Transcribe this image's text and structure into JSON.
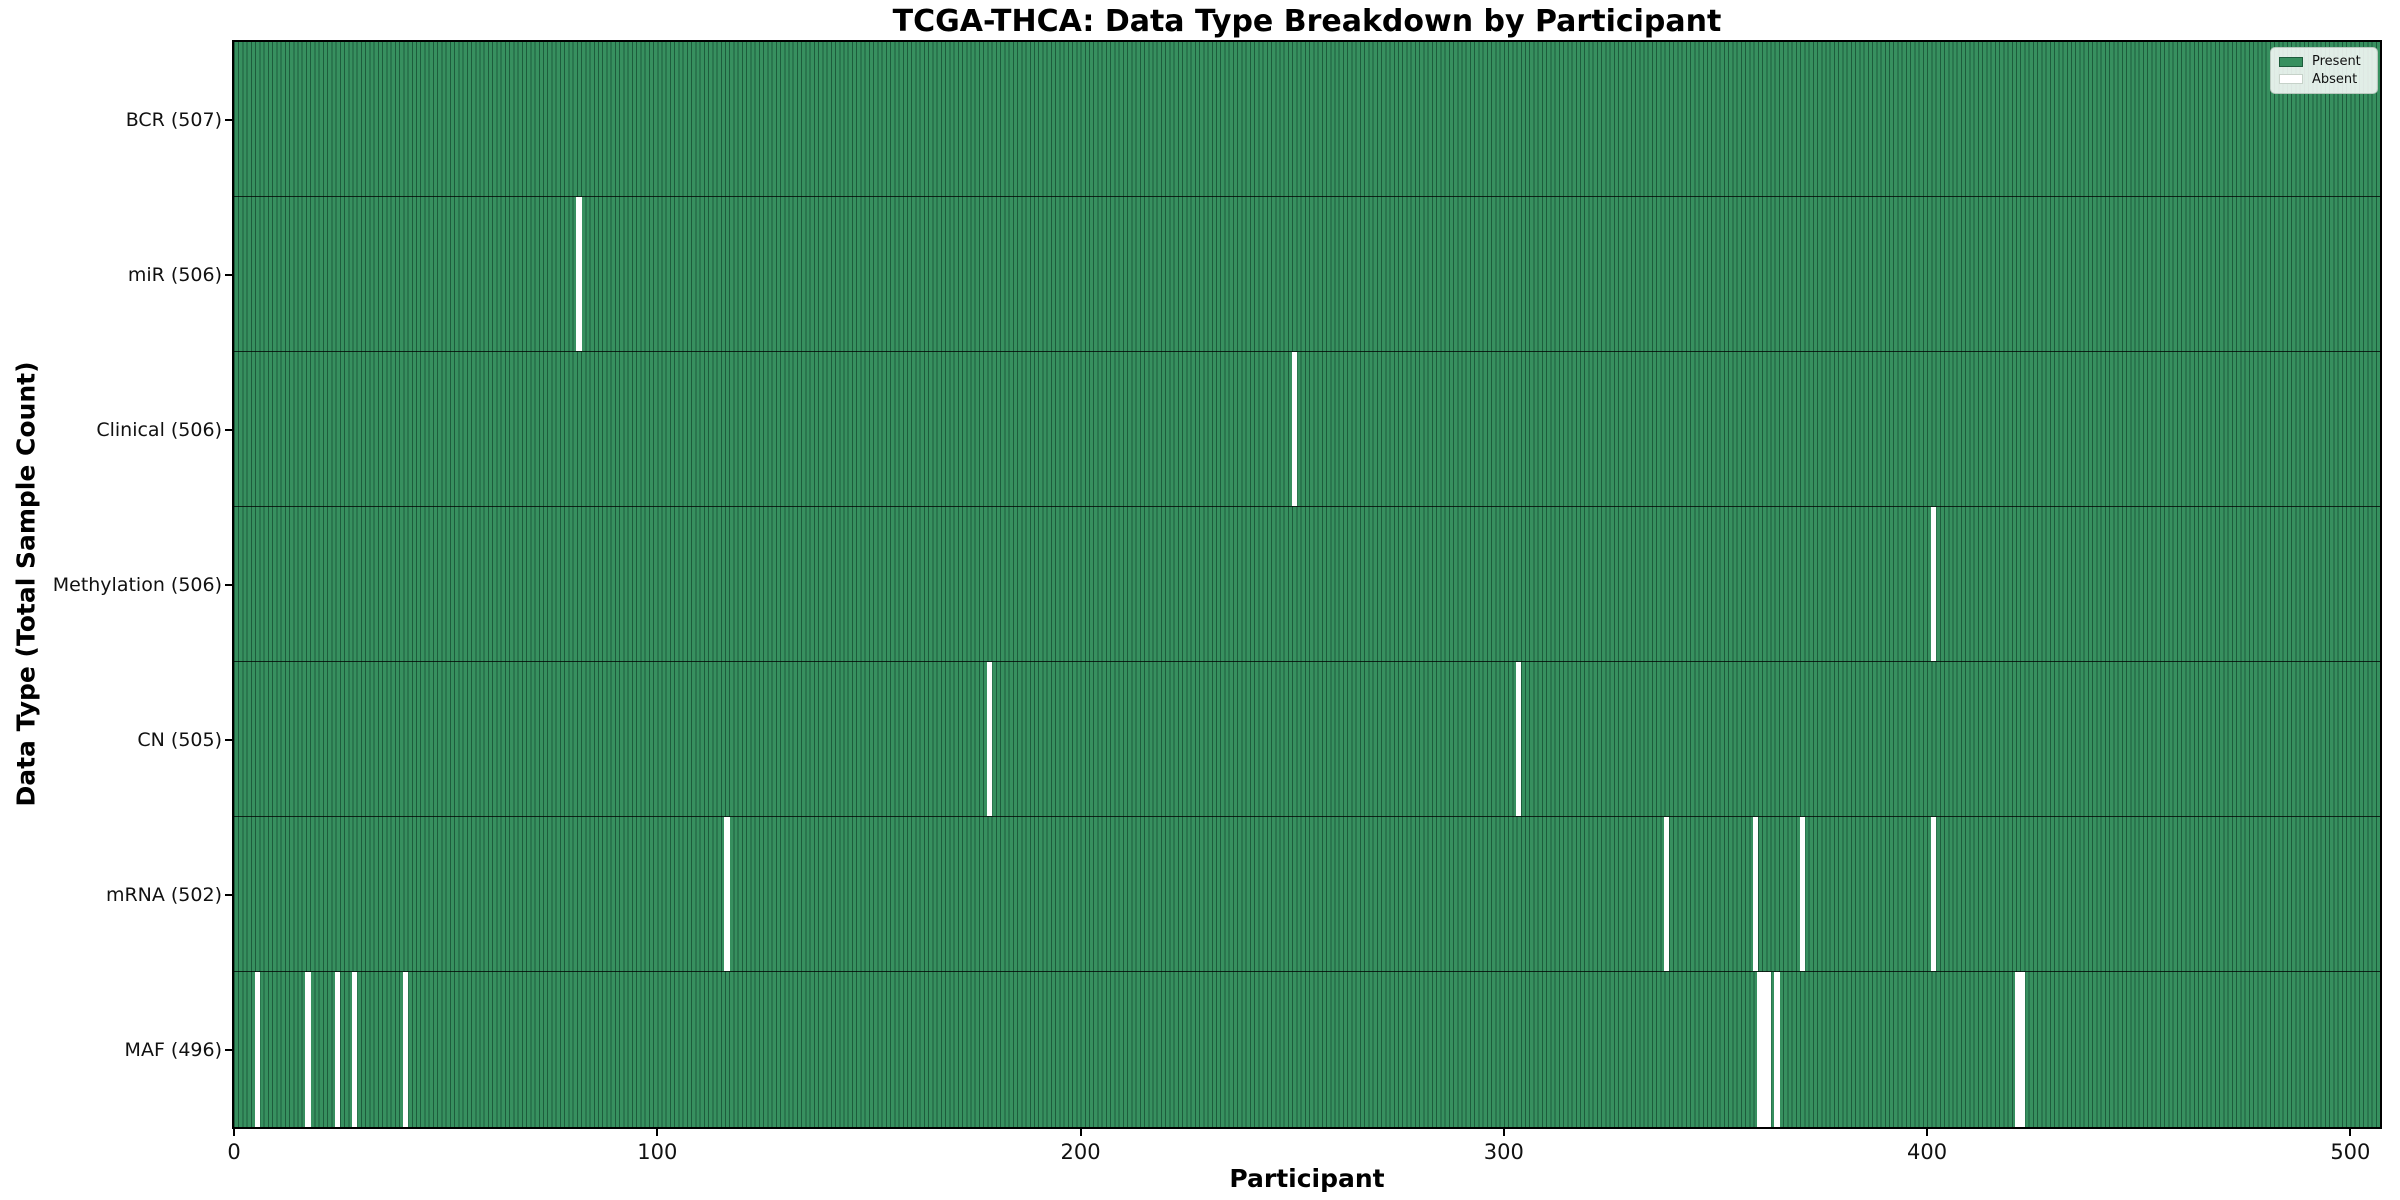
{
  "chart_data": {
    "type": "heatmap",
    "title": "TCGA-THCA: Data Type Breakdown by Participant",
    "xlabel": "Participant",
    "ylabel": "Data Type (Total Sample Count)",
    "n_participants": 507,
    "x_ticks": [
      0,
      100,
      200,
      300,
      400,
      500
    ],
    "xlim": [
      0,
      507
    ],
    "grid": false,
    "legend": {
      "position": "upper right",
      "entries": [
        {
          "label": "Present",
          "color": "#37905f"
        },
        {
          "label": "Absent",
          "color": "#ffffff"
        }
      ]
    },
    "colors": {
      "present_fill": "#37905f",
      "present_edge": "#1d5c3c",
      "absent": "#ffffff"
    },
    "rows": [
      {
        "data_type": "BCR",
        "label": "BCR (507)",
        "total": 507,
        "absent_participants": []
      },
      {
        "data_type": "miR",
        "label": "miR (506)",
        "total": 506,
        "absent_participants": [
          81
        ]
      },
      {
        "data_type": "Clinical",
        "label": "Clinical (506)",
        "total": 506,
        "absent_participants": [
          250
        ]
      },
      {
        "data_type": "Methylation",
        "label": "Methylation (506)",
        "total": 506,
        "absent_participants": [
          401
        ]
      },
      {
        "data_type": "CN",
        "label": "CN (505)",
        "total": 505,
        "absent_participants": [
          178,
          303
        ]
      },
      {
        "data_type": "mRNA",
        "label": "mRNA (502)",
        "total": 502,
        "absent_participants": [
          116,
          338,
          359,
          370,
          401
        ]
      },
      {
        "data_type": "MAF",
        "label": "MAF (496)",
        "total": 496,
        "absent_participants": [
          5,
          17,
          24,
          28,
          40,
          360,
          361,
          362,
          364,
          421,
          422
        ]
      }
    ]
  }
}
